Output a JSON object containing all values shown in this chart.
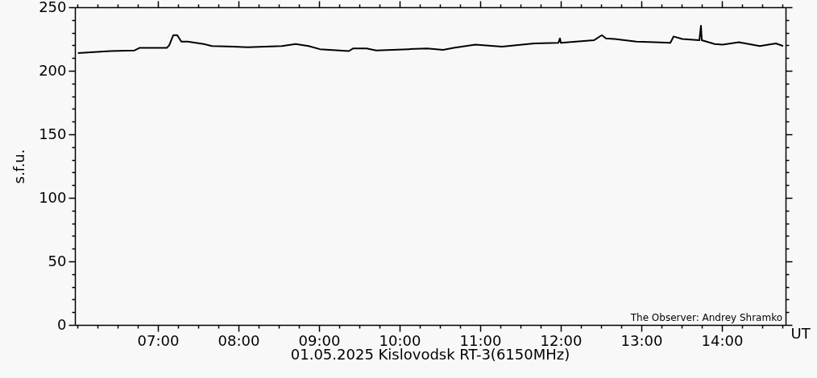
{
  "chart_data": {
    "type": "line",
    "title": "01.05.2025 Kislovodsk RT-3(6150MHz)",
    "xlabel": "UT",
    "ylabel": "s.f.u.",
    "annotations": [
      "The Observer: Andrey Shramko"
    ],
    "x": [
      6.007,
      6.41,
      6.71,
      6.77,
      7.11,
      7.14,
      7.19,
      7.24,
      7.29,
      7.37,
      7.57,
      7.67,
      7.94,
      8.11,
      8.54,
      8.71,
      8.87,
      9.01,
      9.37,
      9.42,
      9.59,
      9.71,
      10.11,
      10.34,
      10.54,
      10.67,
      10.94,
      11.27,
      11.67,
      11.97,
      11.99,
      12.0,
      12.41,
      12.51,
      12.56,
      12.67,
      12.94,
      13.17,
      13.36,
      13.4,
      13.51,
      13.72,
      13.74,
      13.75,
      13.91,
      14.01,
      14.21,
      14.47,
      14.67,
      14.76
    ],
    "series": [
      {
        "color": "#000000",
        "values": [
          214,
          215.5,
          216,
          218,
          218,
          220,
          228,
          228,
          223,
          223,
          221,
          219.5,
          219,
          218.5,
          219.5,
          221,
          219.5,
          217,
          215.5,
          217.5,
          217.5,
          216,
          217,
          217.5,
          216.5,
          218,
          220.5,
          219,
          221.5,
          222,
          225.5,
          222,
          224,
          228,
          225.5,
          225,
          223,
          222.5,
          222,
          227,
          225,
          224,
          235.5,
          224,
          221,
          220.5,
          222.5,
          219.5,
          221.5,
          219.5
        ]
      }
    ],
    "xlim": [
      5.97,
      14.79
    ],
    "xticks": [
      {
        "value": 6,
        "label": null
      },
      {
        "value": 6.25,
        "label": null
      },
      {
        "value": 6.5,
        "label": null
      },
      {
        "value": 6.75,
        "label": null
      },
      {
        "value": 7,
        "label": "07:00"
      },
      {
        "value": 7.25,
        "label": null
      },
      {
        "value": 7.5,
        "label": null
      },
      {
        "value": 7.75,
        "label": null
      },
      {
        "value": 8,
        "label": "08:00"
      },
      {
        "value": 8.25,
        "label": null
      },
      {
        "value": 8.5,
        "label": null
      },
      {
        "value": 8.75,
        "label": null
      },
      {
        "value": 9,
        "label": "09:00"
      },
      {
        "value": 9.25,
        "label": null
      },
      {
        "value": 9.5,
        "label": null
      },
      {
        "value": 9.75,
        "label": null
      },
      {
        "value": 10,
        "label": "10:00"
      },
      {
        "value": 10.25,
        "label": null
      },
      {
        "value": 10.5,
        "label": null
      },
      {
        "value": 10.75,
        "label": null
      },
      {
        "value": 11,
        "label": "11:00"
      },
      {
        "value": 11.25,
        "label": null
      },
      {
        "value": 11.5,
        "label": null
      },
      {
        "value": 11.75,
        "label": null
      },
      {
        "value": 12,
        "label": "12:00"
      },
      {
        "value": 12.25,
        "label": null
      },
      {
        "value": 12.5,
        "label": null
      },
      {
        "value": 12.75,
        "label": null
      },
      {
        "value": 13,
        "label": "13:00"
      },
      {
        "value": 13.25,
        "label": null
      },
      {
        "value": 13.5,
        "label": null
      },
      {
        "value": 13.75,
        "label": null
      },
      {
        "value": 14,
        "label": "14:00"
      },
      {
        "value": 14.25,
        "label": null
      },
      {
        "value": 14.5,
        "label": null
      },
      {
        "value": 14.75,
        "label": null
      }
    ],
    "ylim": [
      0,
      250
    ],
    "yticks": [
      0,
      {
        "value": 10,
        "label": null
      },
      {
        "value": 20,
        "label": null
      },
      {
        "value": 30,
        "label": null
      },
      {
        "value": 40,
        "label": null
      },
      50,
      {
        "value": 60,
        "label": null
      },
      {
        "value": 70,
        "label": null
      },
      {
        "value": 80,
        "label": null
      },
      {
        "value": 90,
        "label": null
      },
      100,
      {
        "value": 110,
        "label": null
      },
      {
        "value": 120,
        "label": null
      },
      {
        "value": 130,
        "label": null
      },
      {
        "value": 140,
        "label": null
      },
      150,
      {
        "value": 160,
        "label": null
      },
      {
        "value": 170,
        "label": null
      },
      {
        "value": 180,
        "label": null
      },
      {
        "value": 190,
        "label": null
      },
      200,
      {
        "value": 210,
        "label": null
      },
      {
        "value": 220,
        "label": null
      },
      {
        "value": 230,
        "label": null
      },
      {
        "value": 240,
        "label": null
      },
      250
    ],
    "grid": false,
    "marker": "none",
    "line_style": "solid"
  }
}
